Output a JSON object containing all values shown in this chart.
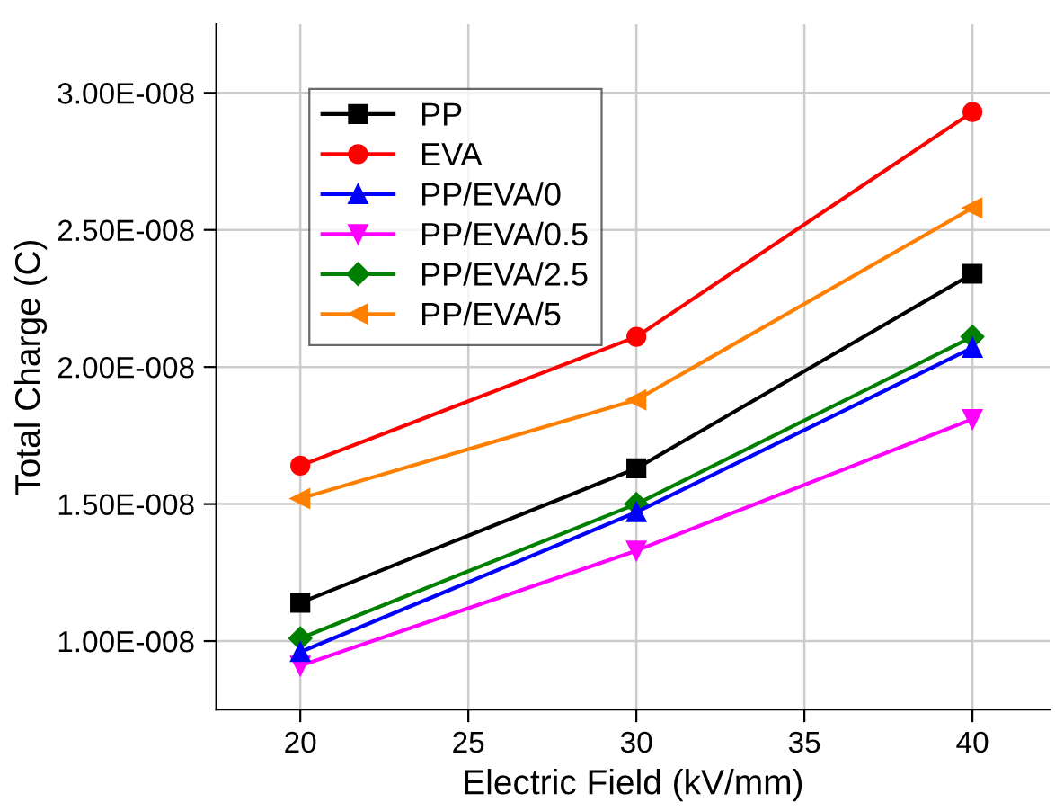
{
  "chart_data": {
    "type": "line",
    "xlabel": "Electric Field (kV/mm)",
    "ylabel": "Total Charge (C)",
    "x": [
      20,
      30,
      40
    ],
    "xlim": [
      17.5,
      42.3
    ],
    "xticks": [
      20,
      25,
      30,
      35,
      40
    ],
    "ylim": [
      7.5e-09,
      3.25e-08
    ],
    "yticks": [
      {
        "value": 1e-08,
        "label": "1.00E-008"
      },
      {
        "value": 1.5e-08,
        "label": "1.50E-008"
      },
      {
        "value": 2e-08,
        "label": "2.00E-008"
      },
      {
        "value": 2.5e-08,
        "label": "2.50E-008"
      },
      {
        "value": 3e-08,
        "label": "3.00E-008"
      }
    ],
    "grid": true,
    "legend": "top left",
    "line_style": "solid",
    "series": [
      {
        "name": "PP",
        "color": "#000000",
        "marker": "square",
        "values": [
          1.14e-08,
          1.63e-08,
          2.34e-08
        ]
      },
      {
        "name": "EVA",
        "color": "#ff0000",
        "marker": "circle",
        "values": [
          1.64e-08,
          2.11e-08,
          2.93e-08
        ]
      },
      {
        "name": "PP/EVA/0",
        "color": "#0000ff",
        "marker": "triangle",
        "values": [
          9.6e-09,
          1.47e-08,
          2.07e-08
        ]
      },
      {
        "name": "PP/EVA/0.5",
        "color": "#ff00ff",
        "marker": "triangle_down",
        "values": [
          9.1e-09,
          1.33e-08,
          1.81e-08
        ]
      },
      {
        "name": "PP/EVA/2.5",
        "color": "#008000",
        "marker": "diamond",
        "values": [
          1.01e-08,
          1.5e-08,
          2.11e-08
        ]
      },
      {
        "name": "PP/EVA/5",
        "color": "#ff8000",
        "marker": "triangle_left",
        "values": [
          1.52e-08,
          1.88e-08,
          2.58e-08
        ]
      }
    ]
  }
}
